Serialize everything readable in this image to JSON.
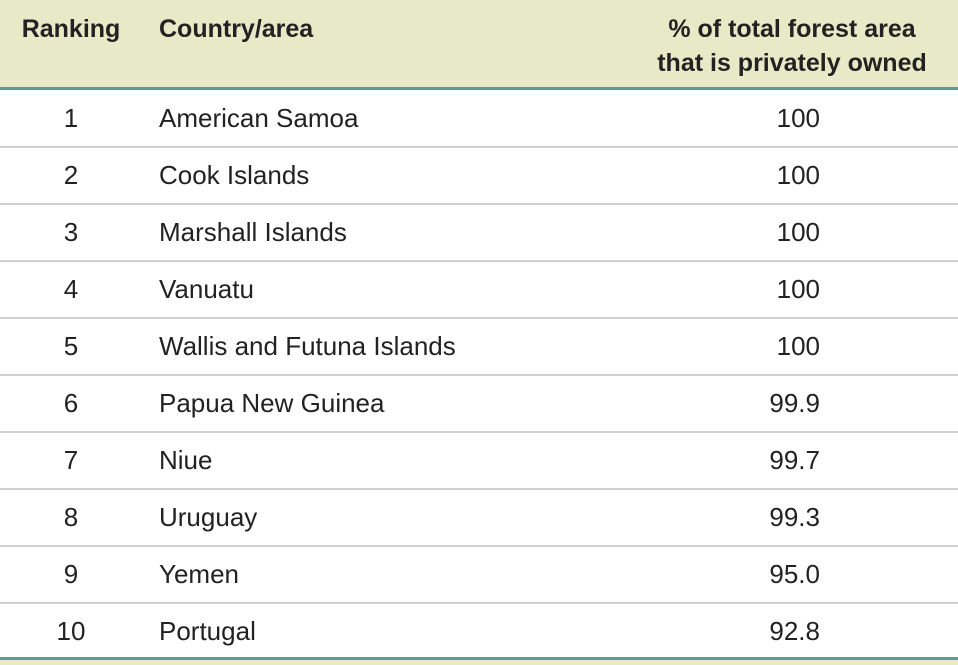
{
  "table": {
    "header": [
      "Ranking",
      "Country/area",
      [
        "% of total forest area",
        "that is privately owned"
      ]
    ],
    "rows": [
      [
        "1",
        "American Samoa",
        "100"
      ],
      [
        "2",
        "Cook Islands",
        "100"
      ],
      [
        "3",
        "Marshall Islands",
        "100"
      ],
      [
        "4",
        "Vanuatu",
        "100"
      ],
      [
        "5",
        "Wallis and Futuna Islands",
        "100"
      ],
      [
        "6",
        "Papua New Guinea",
        "99.9"
      ],
      [
        "7",
        "Niue",
        "99.7"
      ],
      [
        "8",
        "Uruguay",
        "99.3"
      ],
      [
        "9",
        "Yemen",
        "95.0"
      ],
      [
        "10",
        "Portugal",
        "92.8"
      ]
    ]
  }
}
